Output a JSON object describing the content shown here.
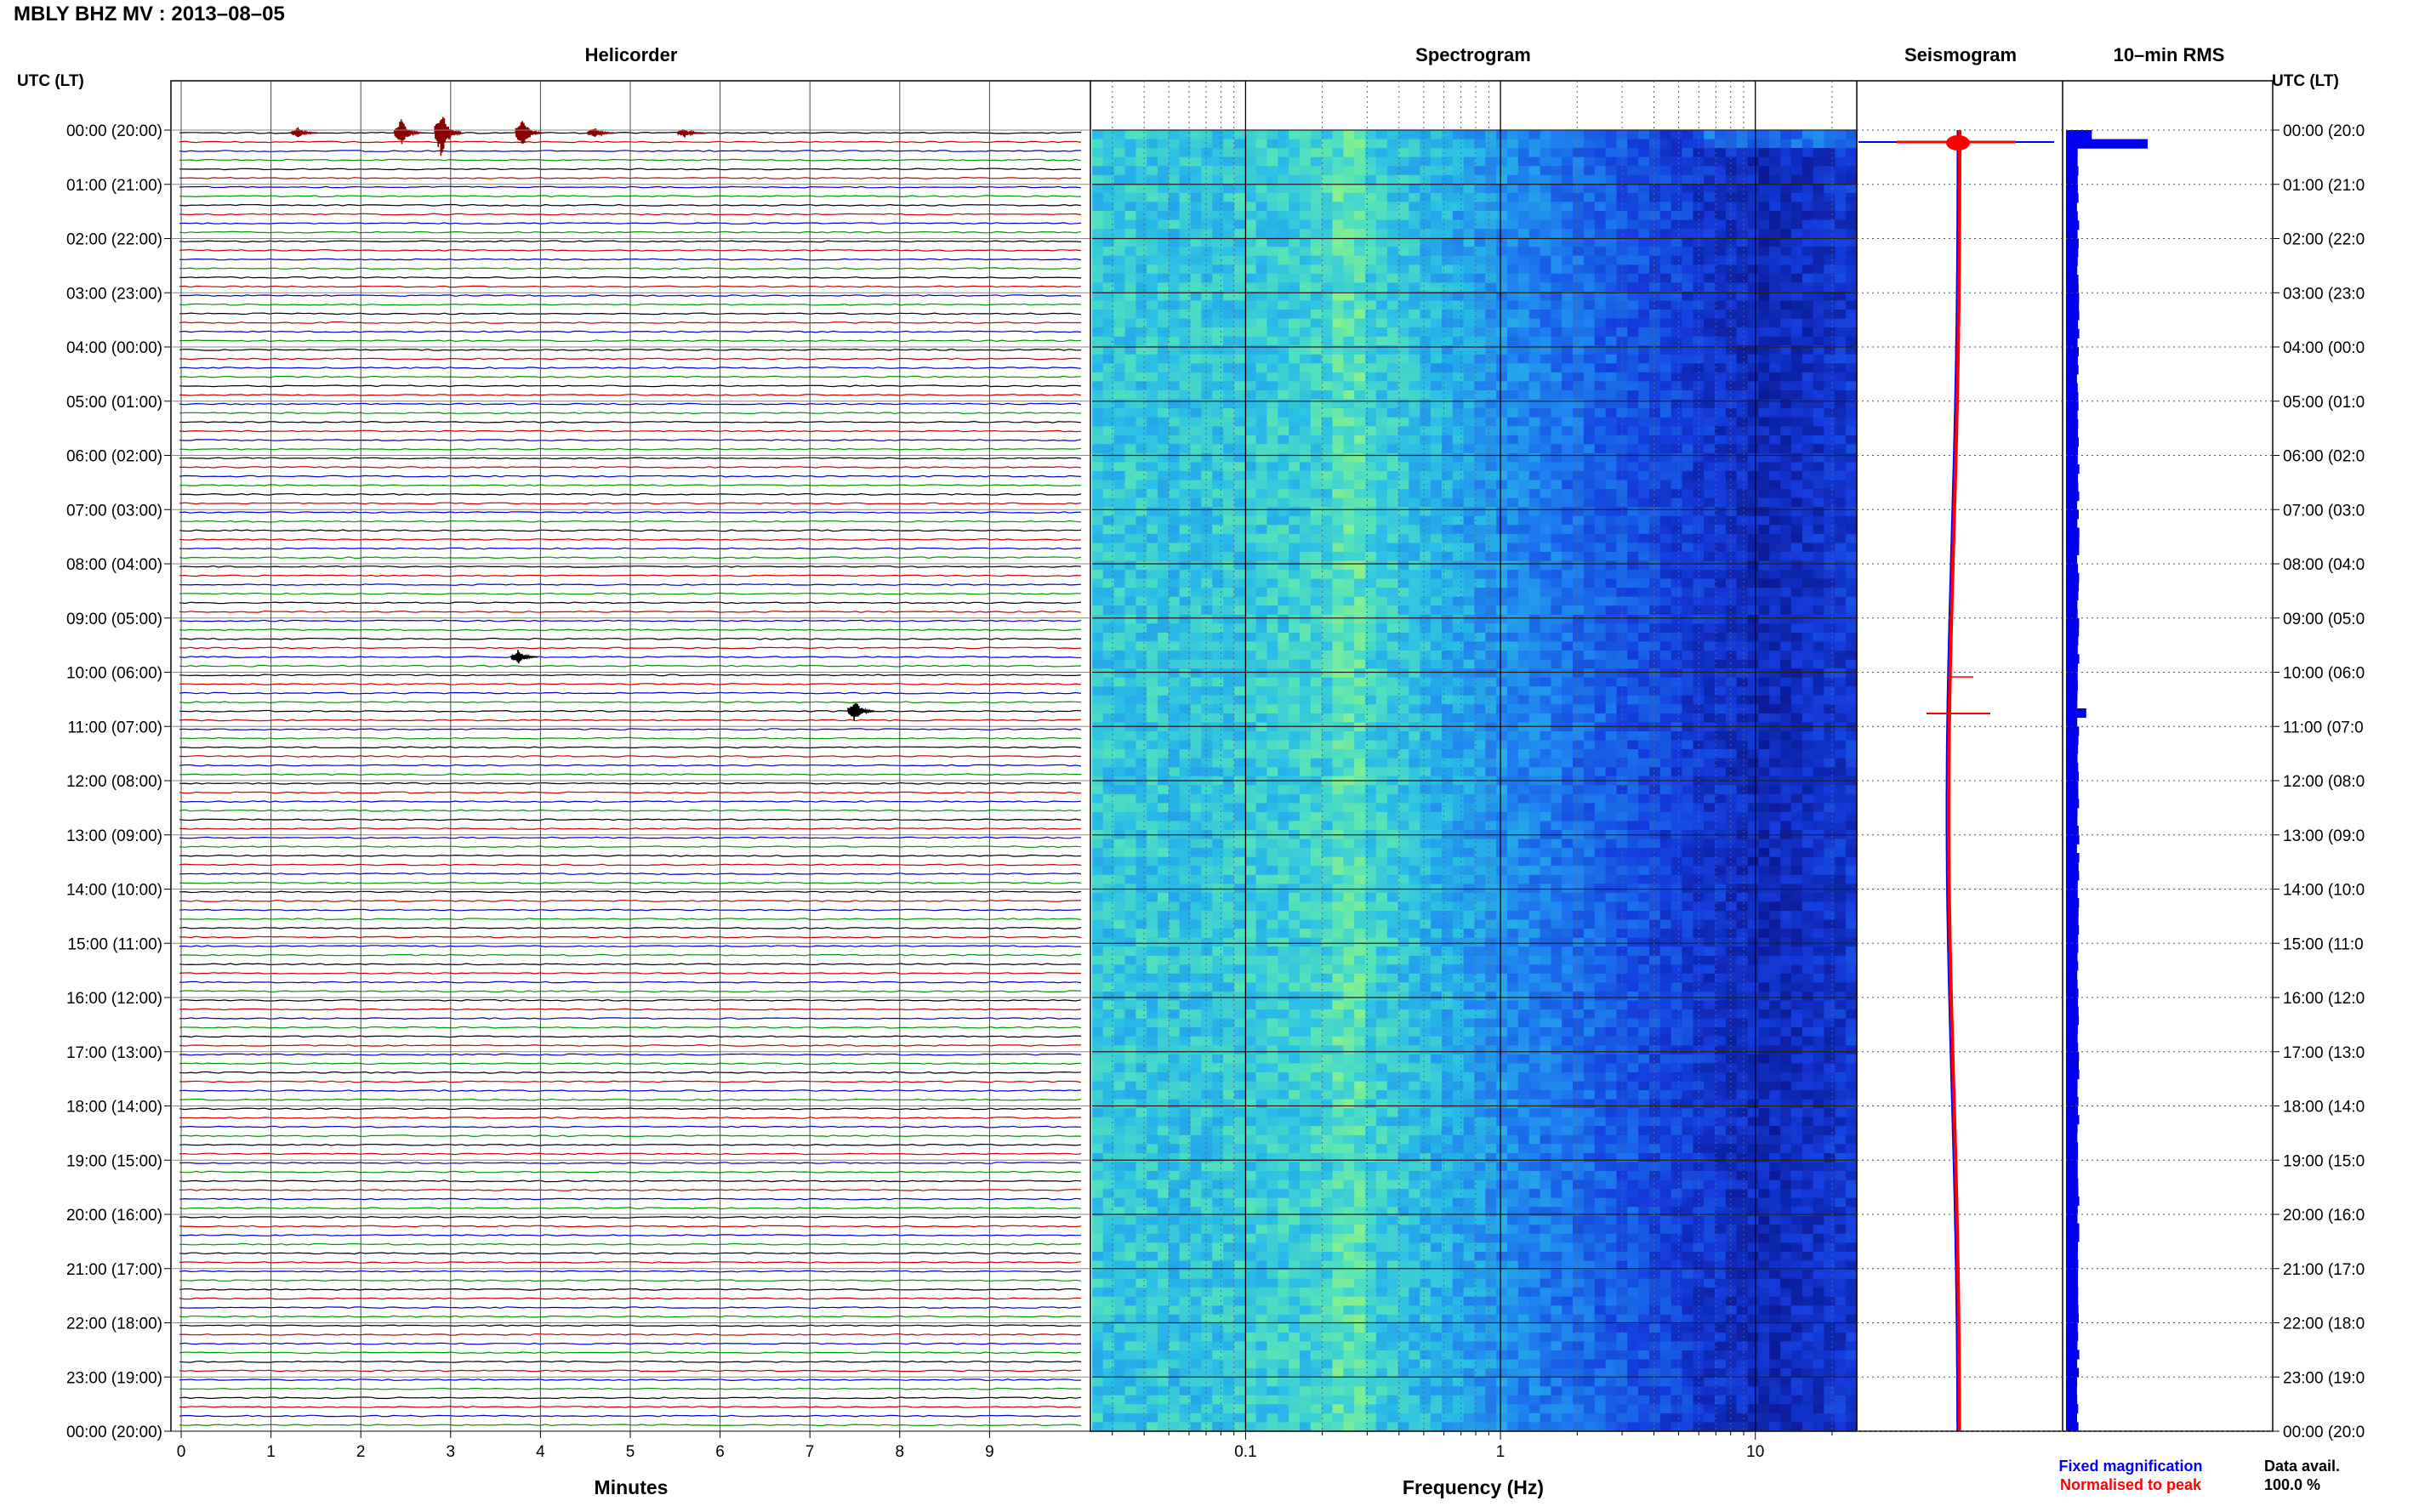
{
  "header": {
    "title": "MBLY BHZ MV : 2013–08–05"
  },
  "panels": {
    "helicorder": "Helicorder",
    "spectrogram": "Spectrogram",
    "seismogram": "Seismogram",
    "rms": "10–min RMS"
  },
  "axes": {
    "left_label": "UTC (LT)",
    "right_label": "UTC (LT)",
    "minutes_label": "Minutes",
    "frequency_label": "Frequency (Hz)"
  },
  "legend": {
    "fixed": "Fixed magnification",
    "normalised": "Normalised to peak",
    "fixed_color": "#0000ff",
    "normalised_color": "#ff0000"
  },
  "data_avail": {
    "label": "Data avail.",
    "value": "100.0 %"
  },
  "colors": {
    "trace_cycle": [
      "#000000",
      "#cc0000",
      "#0000cc",
      "#009900"
    ],
    "event_color": "#8b0000",
    "rms_bar": "#0000ee",
    "spectrogram_deep": "#0a1e96",
    "spectrogram_bright": "#7cf0a0"
  },
  "chart_data": [
    {
      "type": "line",
      "name": "helicorder",
      "title": "Helicorder",
      "xlabel": "Minutes",
      "xlim": [
        0,
        10
      ],
      "xticks": [
        0,
        1,
        2,
        3,
        4,
        5,
        6,
        7,
        8,
        9
      ],
      "rows_per_hour": 6,
      "row_count": 144,
      "events": [
        {
          "row": 0,
          "minute": 2.45,
          "amplitude": 0.9
        },
        {
          "row": 0,
          "minute": 2.9,
          "amplitude": 1.6
        },
        {
          "row": 0,
          "minute": 3.8,
          "amplitude": 1.0
        },
        {
          "row": 0,
          "minute": 1.3,
          "amplitude": 0.35
        },
        {
          "row": 0,
          "minute": 4.6,
          "amplitude": 0.35
        },
        {
          "row": 0,
          "minute": 5.6,
          "amplitude": 0.3
        },
        {
          "row": 58,
          "minute": 3.75,
          "amplitude": 0.45
        },
        {
          "row": 64,
          "minute": 7.5,
          "amplitude": 0.7
        }
      ]
    },
    {
      "type": "heatmap",
      "name": "spectrogram",
      "title": "Spectrogram",
      "xlabel": "Frequency (Hz)",
      "xscale": "log",
      "xlim": [
        0.025,
        25
      ],
      "xticks": [
        0.1,
        1,
        10
      ],
      "xtick_labels": [
        "0.1",
        "1",
        "10"
      ]
    },
    {
      "type": "line",
      "name": "seismogram",
      "title": "Seismogram",
      "series": [
        {
          "name": "Fixed magnification",
          "color": "#0000ff"
        },
        {
          "name": "Normalised to peak",
          "color": "#ff0000"
        }
      ]
    },
    {
      "type": "bar",
      "name": "rms",
      "title": "10–min RMS",
      "orientation": "horizontal",
      "baseline_value": 0.1,
      "peaks": [
        {
          "row": 1,
          "value": 1.0
        },
        {
          "row": 0,
          "value": 0.3
        },
        {
          "row": 64,
          "value": 0.22
        }
      ]
    }
  ],
  "time_labels": [
    "00:00 (20:00)",
    "01:00 (21:00)",
    "02:00 (22:00)",
    "03:00 (23:00)",
    "04:00 (00:00)",
    "05:00 (01:00)",
    "06:00 (02:00)",
    "07:00 (03:00)",
    "08:00 (04:00)",
    "09:00 (05:00)",
    "10:00 (06:00)",
    "11:00 (07:00)",
    "12:00 (08:00)",
    "13:00 (09:00)",
    "14:00 (10:00)",
    "15:00 (11:00)",
    "16:00 (12:00)",
    "17:00 (13:00)",
    "18:00 (14:00)",
    "19:00 (15:00)",
    "20:00 (16:00)",
    "21:00 (17:00)",
    "22:00 (18:00)",
    "23:00 (19:00)",
    "00:00 (20:00)"
  ],
  "time_labels_right": [
    "00:00 (20:0",
    "01:00 (21:0",
    "02:00 (22:0",
    "03:00 (23:0",
    "04:00 (00:0",
    "05:00 (01:0",
    "06:00 (02:0",
    "07:00 (03:0",
    "08:00 (04:0",
    "09:00 (05:0",
    "10:00 (06:0",
    "11:00 (07:0",
    "12:00 (08:0",
    "13:00 (09:0",
    "14:00 (10:0",
    "15:00 (11:0",
    "16:00 (12:0",
    "17:00 (13:0",
    "18:00 (14:0",
    "19:00 (15:0",
    "20:00 (16:0",
    "21:00 (17:0",
    "22:00 (18:0",
    "23:00 (19:0",
    "00:00 (20:0"
  ]
}
